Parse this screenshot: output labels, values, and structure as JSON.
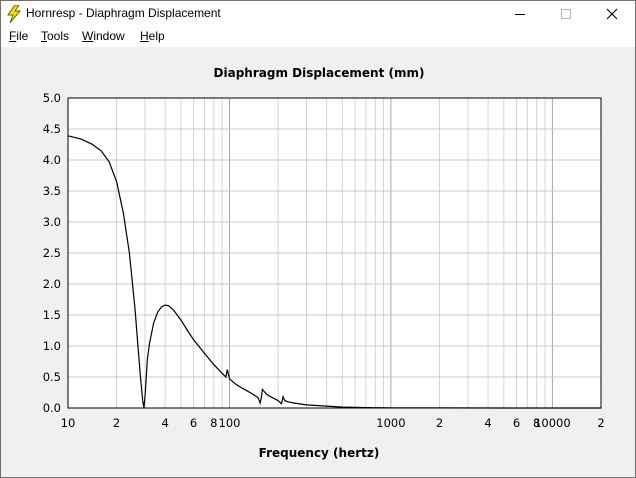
{
  "window": {
    "title": "Hornresp - Diaphragm Displacement",
    "icon": "lightning-bolt-icon",
    "controls": [
      "minimize-icon",
      "maximize-icon",
      "close-icon"
    ]
  },
  "menu": [
    {
      "first": "F",
      "rest": "ile"
    },
    {
      "first": "T",
      "rest": "ools"
    },
    {
      "first": "W",
      "rest": "indow"
    },
    {
      "first": "H",
      "rest": "elp"
    }
  ],
  "chart_data": {
    "type": "line",
    "title": "Diaphragm Displacement (mm)",
    "xlabel": "Frequency (hertz)",
    "ylabel": "",
    "x_scale": "log",
    "xlim": [
      10,
      20000
    ],
    "ylim": [
      0,
      5
    ],
    "grid": true,
    "y_ticks": [
      "0.0",
      "0.5",
      "1.0",
      "1.5",
      "2.0",
      "2.5",
      "3.0",
      "3.5",
      "4.0",
      "4.5",
      "5.0"
    ],
    "x_ticks": [
      {
        "value": 10,
        "label": "10"
      },
      {
        "value": 20,
        "label": "2"
      },
      {
        "value": 40,
        "label": "4"
      },
      {
        "value": 60,
        "label": "6"
      },
      {
        "value": 80,
        "label": "8"
      },
      {
        "value": 100,
        "label": "100"
      },
      {
        "value": 1000,
        "label": "1000"
      },
      {
        "value": 2000,
        "label": "2"
      },
      {
        "value": 4000,
        "label": "4"
      },
      {
        "value": 6000,
        "label": "6"
      },
      {
        "value": 8000,
        "label": "8"
      },
      {
        "value": 10000,
        "label": "10000"
      },
      {
        "value": 20000,
        "label": "2"
      }
    ],
    "series": [
      {
        "color": "#000000",
        "x": [
          10,
          12,
          14,
          16,
          18,
          20,
          22,
          24,
          26,
          27,
          28,
          29,
          29.5,
          30,
          30.5,
          31,
          32,
          34,
          36,
          38,
          40,
          42,
          45,
          50,
          55,
          60,
          70,
          80,
          90,
          95,
          97,
          99,
          100,
          110,
          120,
          130,
          140,
          150,
          155,
          158,
          160,
          170,
          180,
          190,
          200,
          210,
          215,
          220,
          230,
          250,
          300,
          400,
          500,
          600,
          800,
          1000,
          2000,
          5000,
          10000,
          20000
        ],
        "y": [
          4.39,
          4.34,
          4.26,
          4.15,
          3.97,
          3.65,
          3.15,
          2.5,
          1.6,
          1.05,
          0.55,
          0.12,
          0.0,
          0.18,
          0.48,
          0.78,
          1.05,
          1.38,
          1.55,
          1.63,
          1.66,
          1.65,
          1.58,
          1.42,
          1.25,
          1.1,
          0.88,
          0.7,
          0.56,
          0.5,
          0.62,
          0.52,
          0.47,
          0.38,
          0.32,
          0.27,
          0.22,
          0.17,
          0.08,
          0.18,
          0.3,
          0.22,
          0.18,
          0.15,
          0.12,
          0.07,
          0.18,
          0.12,
          0.1,
          0.08,
          0.05,
          0.03,
          0.015,
          0.01,
          0.005,
          0.003,
          0.001,
          0,
          0,
          0
        ]
      }
    ]
  }
}
